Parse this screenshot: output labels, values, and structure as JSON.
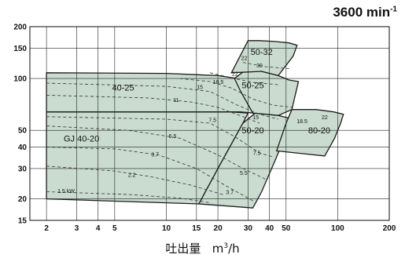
{
  "header": {
    "speed_value": "3600 min",
    "speed_exp": "-1"
  },
  "xaxis": {
    "label_main": "吐出量",
    "label_unit": "m",
    "label_exp": "3",
    "label_tail": "/h"
  },
  "chart_data": {
    "type": "area",
    "x_scale": "log",
    "y_scale": "log",
    "xlim": [
      1.6,
      200
    ],
    "ylim": [
      15,
      200
    ],
    "x_ticks": [
      2,
      3,
      4,
      5,
      10,
      15,
      20,
      30,
      40,
      50,
      100,
      200
    ],
    "y_ticks": [
      15,
      20,
      30,
      40,
      50,
      100,
      150,
      200
    ],
    "grid": true,
    "colors": {
      "region_fill": "#c9dccf",
      "region_stroke": "#1b1b1b",
      "grid": "#222222",
      "curve": "#333333"
    },
    "regions": [
      {
        "name": "GJ 40-20",
        "label_at": [
          3.2,
          43
        ],
        "polygon": [
          [
            2,
            20
          ],
          [
            15.5,
            18.7
          ],
          [
            20,
            30
          ],
          [
            28,
            55
          ],
          [
            30,
            63
          ],
          [
            24,
            64
          ],
          [
            10,
            64
          ],
          [
            2,
            64
          ]
        ]
      },
      {
        "name": "40-25",
        "label_at": [
          5.6,
          85
        ],
        "polygon": [
          [
            2,
            64
          ],
          [
            14,
            64
          ],
          [
            27,
            64
          ],
          [
            32,
            63
          ],
          [
            32,
            85
          ],
          [
            28,
            99
          ],
          [
            20,
            104
          ],
          [
            10,
            107
          ],
          [
            2,
            108
          ]
        ]
      },
      {
        "name": "50-20",
        "label_at": [
          32,
          48
        ],
        "polygon": [
          [
            15.5,
            18.7
          ],
          [
            32,
            17.7
          ],
          [
            36,
            22
          ],
          [
            44,
            35
          ],
          [
            50,
            48
          ],
          [
            55,
            58
          ],
          [
            45,
            61
          ],
          [
            33,
            63
          ],
          [
            28,
            55
          ],
          [
            20,
            30
          ]
        ]
      },
      {
        "name": "50-25",
        "label_at": [
          32,
          88
        ],
        "polygon": [
          [
            32,
            63
          ],
          [
            45,
            61
          ],
          [
            54,
            66
          ],
          [
            59,
            96
          ],
          [
            52,
            98
          ],
          [
            45,
            104
          ],
          [
            36,
            110
          ],
          [
            29,
            112
          ],
          [
            25,
            100
          ],
          [
            27,
            85
          ]
        ]
      },
      {
        "name": "80-20",
        "label_at": [
          78,
          48
        ],
        "polygon": [
          [
            44,
            38
          ],
          [
            84,
            35.5
          ],
          [
            96,
            45
          ],
          [
            104,
            55
          ],
          [
            108,
            62
          ],
          [
            95,
            64
          ],
          [
            75,
            66
          ],
          [
            54,
            66
          ],
          [
            50,
            55
          ]
        ]
      },
      {
        "name": "50-32",
        "label_at": [
          36,
          137
        ],
        "polygon": [
          [
            24,
            108
          ],
          [
            36,
            110
          ],
          [
            45,
            104
          ],
          [
            55,
            135
          ],
          [
            58,
            156
          ],
          [
            52,
            161
          ],
          [
            43,
            164
          ],
          [
            35,
            166
          ],
          [
            30,
            166
          ]
        ]
      }
    ],
    "power_curves": [
      {
        "label": "1.5 kW",
        "label_at": [
          2.6,
          21.7
        ],
        "points": [
          [
            2,
            22
          ],
          [
            6,
            21.2
          ],
          [
            12,
            20.2
          ],
          [
            18,
            19
          ]
        ]
      },
      {
        "label": "2.2",
        "label_at": [
          6.3,
          26.8
        ],
        "points": [
          [
            2,
            31
          ],
          [
            5,
            29
          ],
          [
            8,
            27
          ],
          [
            14,
            24
          ],
          [
            22,
            21
          ]
        ]
      },
      {
        "label": "3.7",
        "label_at": [
          8.6,
          35.2
        ],
        "points": [
          [
            2,
            40
          ],
          [
            5,
            39
          ],
          [
            9,
            36
          ],
          [
            15,
            30
          ],
          [
            22,
            24
          ],
          [
            32,
            19.5
          ]
        ]
      },
      {
        "label": "5.5",
        "label_at": [
          10.9,
          45
        ],
        "points": [
          [
            2,
            53
          ],
          [
            6,
            50
          ],
          [
            12,
            45
          ],
          [
            20,
            36
          ],
          [
            28,
            30
          ],
          [
            38,
            26
          ]
        ]
      },
      {
        "label": "7.5",
        "label_at": [
          18.6,
          56
        ],
        "points": [
          [
            2,
            60
          ],
          [
            10,
            58
          ],
          [
            18,
            55
          ],
          [
            25,
            46
          ],
          [
            35,
            37
          ],
          [
            42,
            35
          ]
        ]
      },
      {
        "label": "11",
        "label_at": [
          11.4,
          73
        ],
        "points": [
          [
            2,
            80
          ],
          [
            8,
            77
          ],
          [
            14,
            73
          ],
          [
            20,
            68
          ],
          [
            28,
            60
          ],
          [
            35,
            55
          ]
        ]
      },
      {
        "label": "15",
        "label_at": [
          15.7,
          87
        ],
        "points": [
          [
            2,
            94
          ],
          [
            10,
            90
          ],
          [
            18,
            84
          ],
          [
            26,
            70
          ],
          [
            35,
            62
          ],
          [
            45,
            58
          ]
        ]
      },
      {
        "label": "18.5",
        "label_at": [
          20.1,
          93
        ],
        "points": [
          [
            12,
            100
          ],
          [
            18,
            96
          ],
          [
            24,
            88
          ],
          [
            32,
            76
          ],
          [
            42,
            70
          ],
          [
            55,
            68
          ]
        ]
      },
      {
        "label": "22",
        "label_at": [
          25.2,
          104
        ],
        "points": [
          [
            18,
            108
          ],
          [
            25,
            100
          ],
          [
            32,
            95
          ],
          [
            45,
            92
          ]
        ]
      },
      {
        "label": "30",
        "label_at": [
          35,
          116
        ],
        "points": [
          [
            28,
            124
          ],
          [
            38,
            117
          ],
          [
            52,
            114
          ]
        ]
      }
    ],
    "power_labels_extra": [
      {
        "label": "15",
        "at": [
          33.3,
          58
        ]
      },
      {
        "label": "18.5",
        "at": [
          62,
          55
        ]
      },
      {
        "label": "22",
        "at": [
          84,
          58
        ]
      },
      {
        "label": "22",
        "at": [
          28.5,
          128
        ]
      },
      {
        "label": "7.5",
        "at": [
          33.8,
          36
        ]
      },
      {
        "label": "5.5",
        "at": [
          28.3,
          27.5
        ]
      },
      {
        "label": "3.7",
        "at": [
          23.5,
          21.3
        ]
      }
    ]
  }
}
